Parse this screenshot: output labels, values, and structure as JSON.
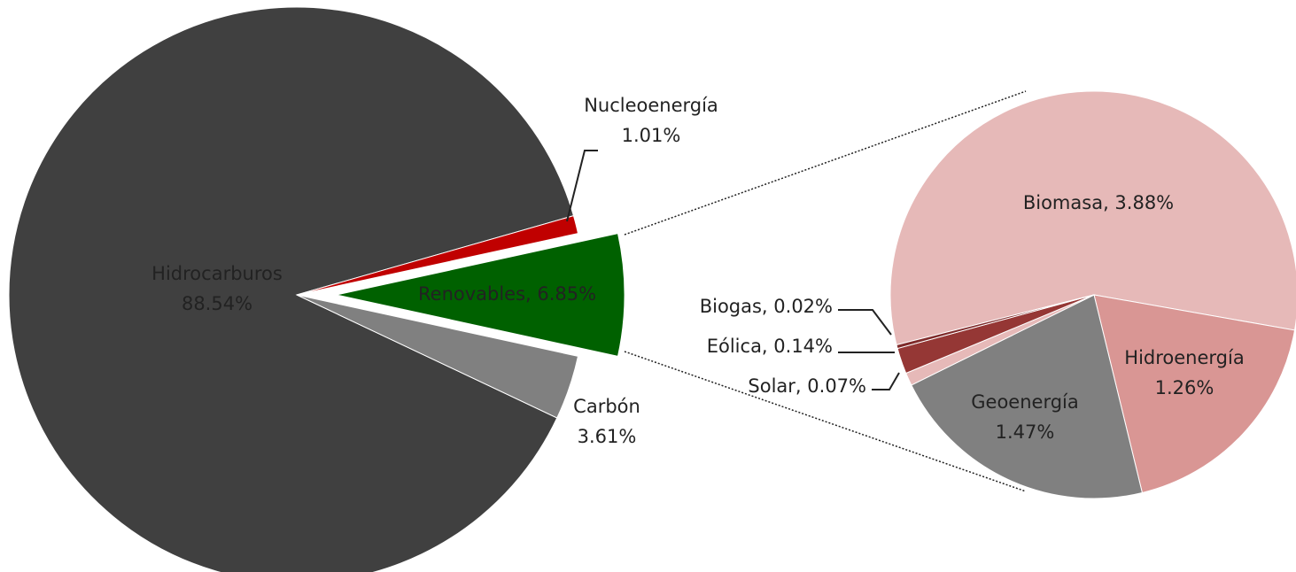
{
  "chart_data": [
    {
      "type": "pie",
      "labels": [
        [
          "Hidrocarburos",
          "88.54%"
        ],
        [
          "Nucleoenergía",
          "1.01%"
        ],
        [
          "Renovables, 6.85%"
        ],
        [
          "Carbón",
          "3.61%"
        ]
      ],
      "values": [
        88.54,
        1.01,
        6.85,
        3.61
      ],
      "colors": [
        "#404040",
        "#c00000",
        "#006100",
        "#808080"
      ]
    },
    {
      "type": "pie",
      "labels": [
        [
          "Biomasa, 3.88%"
        ],
        [
          "Hidroenergía",
          "1.26%"
        ],
        [
          "Geoenergía",
          "1.47%"
        ],
        [
          "Solar, 0.07%"
        ],
        [
          "Eólica, 0.14%"
        ],
        [
          "Biogas, 0.02%"
        ]
      ],
      "values": [
        3.88,
        1.26,
        1.47,
        0.07,
        0.14,
        0.02
      ],
      "colors": [
        "#e6b9b8",
        "#d99694",
        "#808080",
        "#e6b9b8",
        "#953735",
        "#7f2a2a"
      ]
    }
  ]
}
